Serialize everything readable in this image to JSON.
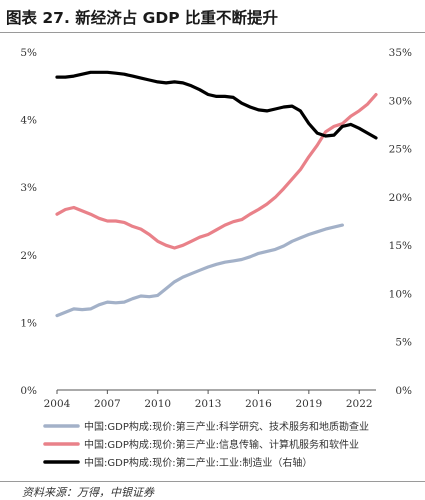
{
  "title": "图表 27. 新经济占 GDP 比重不断提升",
  "source": "资料来源：万得，中银证券",
  "chart_data": {
    "type": "line",
    "title": "图表 27. 新经济占 GDP 比重不断提升",
    "xlabel": "",
    "ylabel": "",
    "xlim": [
      2004,
      2023
    ],
    "ylim": [
      0,
      5
    ],
    "y2lim": [
      0,
      35
    ],
    "x_ticks": [
      "2004",
      "2007",
      "2010",
      "2013",
      "2016",
      "2019",
      "2022"
    ],
    "y_ticks": [
      "0%",
      "1%",
      "2%",
      "3%",
      "4%",
      "5%"
    ],
    "y2_ticks": [
      "0%",
      "5%",
      "10%",
      "15%",
      "20%",
      "25%",
      "30%",
      "35%"
    ],
    "grid": false,
    "legend_position": "bottom",
    "series": [
      {
        "name": "中国:GDP构成:现价:第三产业:科学研究、技术服务和地质勘查业",
        "color": "#a3b1c8",
        "axis": "left",
        "x": [
          2004,
          2004.5,
          2005,
          2005.5,
          2006,
          2006.5,
          2007,
          2007.5,
          2008,
          2008.5,
          2009,
          2009.5,
          2010,
          2010.5,
          2011,
          2011.5,
          2012,
          2012.5,
          2013,
          2013.5,
          2014,
          2014.5,
          2015,
          2015.5,
          2016,
          2016.5,
          2017,
          2017.5,
          2018,
          2018.5,
          2019,
          2019.5,
          2020,
          2020.5,
          2021
        ],
        "values": [
          1.1,
          1.15,
          1.2,
          1.19,
          1.2,
          1.26,
          1.3,
          1.29,
          1.3,
          1.35,
          1.39,
          1.38,
          1.4,
          1.5,
          1.6,
          1.67,
          1.72,
          1.77,
          1.82,
          1.86,
          1.89,
          1.91,
          1.93,
          1.97,
          2.02,
          2.05,
          2.08,
          2.13,
          2.2,
          2.25,
          2.3,
          2.34,
          2.38,
          2.41,
          2.44
        ]
      },
      {
        "name": "中国:GDP构成:现价:第三产业:信息传输、计算机服务和软件业",
        "color": "#e98189",
        "axis": "left",
        "x": [
          2004,
          2004.5,
          2005,
          2005.5,
          2006,
          2006.5,
          2007,
          2007.5,
          2008,
          2008.5,
          2009,
          2009.5,
          2010,
          2010.5,
          2011,
          2011.5,
          2012,
          2012.5,
          2013,
          2013.5,
          2014,
          2014.5,
          2015,
          2015.5,
          2016,
          2016.5,
          2017,
          2017.5,
          2018,
          2018.5,
          2019,
          2019.5,
          2020,
          2020.5,
          2021,
          2021.5,
          2022,
          2022.5,
          2023
        ],
        "values": [
          2.6,
          2.67,
          2.7,
          2.65,
          2.6,
          2.54,
          2.5,
          2.5,
          2.48,
          2.42,
          2.38,
          2.3,
          2.2,
          2.14,
          2.1,
          2.14,
          2.2,
          2.26,
          2.3,
          2.37,
          2.44,
          2.49,
          2.52,
          2.6,
          2.67,
          2.75,
          2.85,
          2.98,
          3.12,
          3.26,
          3.45,
          3.62,
          3.82,
          3.9,
          3.94,
          4.05,
          4.13,
          4.23,
          4.37
        ]
      },
      {
        "name": "中国:GDP构成:现价:第二产业:工业:制造业（右轴）",
        "color": "#000000",
        "axis": "right",
        "x": [
          2004,
          2004.5,
          2005,
          2005.5,
          2006,
          2006.5,
          2007,
          2007.5,
          2008,
          2008.5,
          2009,
          2009.5,
          2010,
          2010.5,
          2011,
          2011.5,
          2012,
          2012.5,
          2013,
          2013.5,
          2014,
          2014.5,
          2015,
          2015.5,
          2016,
          2016.5,
          2017,
          2017.5,
          2018,
          2018.5,
          2019,
          2019.5,
          2020,
          2020.5,
          2021,
          2021.5,
          2022,
          2022.5,
          2023
        ],
        "values": [
          32.4,
          32.4,
          32.5,
          32.7,
          32.9,
          32.9,
          32.9,
          32.8,
          32.7,
          32.5,
          32.3,
          32.1,
          31.9,
          31.8,
          31.9,
          31.8,
          31.5,
          31.1,
          30.6,
          30.4,
          30.4,
          30.3,
          29.7,
          29.3,
          29.0,
          28.9,
          29.1,
          29.3,
          29.4,
          28.9,
          27.6,
          26.6,
          26.3,
          26.4,
          27.3,
          27.5,
          27.1,
          26.6,
          26.1
        ]
      }
    ]
  }
}
